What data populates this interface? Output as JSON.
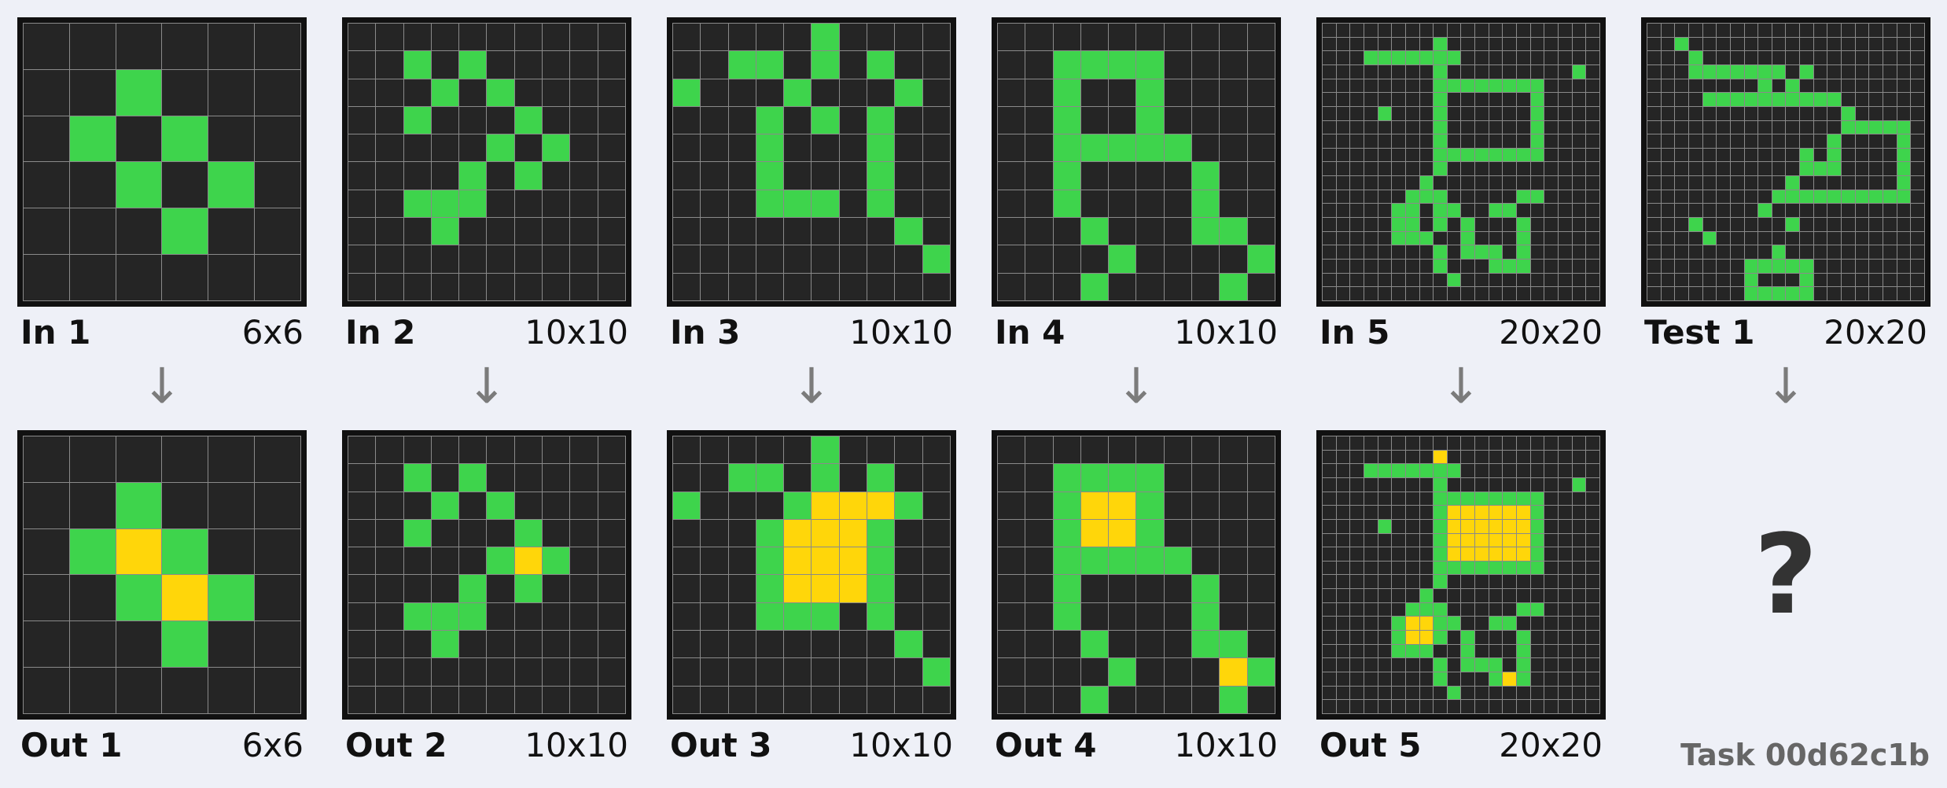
{
  "task_id": "Task 00d62c1b",
  "question_mark": "?",
  "arrow": "↓",
  "colors": {
    "0": "#252525",
    "3": "#3ed44c",
    "4": "#ffd60a"
  },
  "inputs": [
    {
      "label": "In 1",
      "size": "6x6",
      "grid": [
        "000000",
        "003000",
        "030300",
        "003030",
        "000300",
        "000000"
      ]
    },
    {
      "label": "In 2",
      "size": "10x10",
      "grid": [
        "0000000000",
        "0030300000",
        "0003030000",
        "0030003000",
        "0000030300",
        "0000303000",
        "0033300000",
        "0003000000",
        "0000000000",
        "0000000000"
      ]
    },
    {
      "label": "In 3",
      "size": "10x10",
      "grid": [
        "0000030000",
        "0033030300",
        "3000300030",
        "0003030300",
        "0003000300",
        "0003000300",
        "0003330300",
        "0000000030",
        "0000000003",
        "0000000000"
      ]
    },
    {
      "label": "In 4",
      "size": "10x10",
      "grid": [
        "0000000000",
        "0033330000",
        "0030030000",
        "0030030000",
        "0033333000",
        "0030000300",
        "0030000300",
        "0003000330",
        "0000300003",
        "0003000030"
      ]
    },
    {
      "label": "In 5",
      "size": "20x20",
      "grid": [
        "00000000000000000000",
        "00000000300000000000",
        "00033333330000000000",
        "00000000300000000030",
        "00000000333333330000",
        "00000000300000030000",
        "00003000300000030000",
        "00000000300000030000",
        "00000000300000030000",
        "00000000333333330000",
        "00000000300000000000",
        "00000003000000000000",
        "00000033300000330000",
        "00000330330033000000",
        "00000330303000300000",
        "00000333003000300000",
        "00000000303330300000",
        "00000000300033300000",
        "00000000030000000000",
        "00000000000000000000"
      ]
    },
    {
      "label": "Test 1",
      "size": "20x20",
      "grid": [
        "00000000000000000000",
        "00300000000000000000",
        "00030000000000000000",
        "00033333330300000000",
        "00000000303000000000",
        "00003333333333000000",
        "00000000000000300000",
        "00000000000000333330",
        "00000000000003000030",
        "00000000000303000030",
        "00000000000333000030",
        "00000000003000000030",
        "00000000033333333330",
        "00000000300000000000",
        "00030000003000000000",
        "00003000000000000000",
        "00000000030000000000",
        "00000003333300000000",
        "00000003000300000000",
        "00000003333300000000"
      ]
    }
  ],
  "outputs": [
    {
      "label": "Out 1",
      "size": "6x6",
      "grid": [
        "000000",
        "003000",
        "034300",
        "003430",
        "000300",
        "000000"
      ]
    },
    {
      "label": "Out 2",
      "size": "10x10",
      "grid": [
        "0000000000",
        "0030300000",
        "0003030000",
        "0030003000",
        "0000034300",
        "0000303000",
        "0033300000",
        "0003000000",
        "0000000000",
        "0000000000"
      ]
    },
    {
      "label": "Out 3",
      "size": "10x10",
      "grid": [
        "0000030000",
        "0033030300",
        "3000344430",
        "0003444300",
        "0003444300",
        "0003444300",
        "0003330300",
        "0000000030",
        "0000000003",
        "0000000000"
      ]
    },
    {
      "label": "Out 4",
      "size": "10x10",
      "grid": [
        "0000000000",
        "0033330000",
        "0034430000",
        "0034430000",
        "0033333000",
        "0030000300",
        "0030000300",
        "0003000330",
        "0000300043",
        "0003000030"
      ]
    },
    {
      "label": "Out 5",
      "size": "20x20",
      "grid": [
        "00000000000000000000",
        "00000000400000000000",
        "00033333330000000000",
        "00000000300000000030",
        "00000000333333330000",
        "00000000344444430000",
        "00003000344444430000",
        "00000000344444430000",
        "00000000344444430000",
        "00000000333333330000",
        "00000000300000000000",
        "00000003000000000000",
        "00000033300000330000",
        "00000344330033000000",
        "00000344303000300000",
        "00000333003000300000",
        "00000000303330300000",
        "00000000300034300000",
        "00000000030000000000",
        "00000000000000000000"
      ]
    }
  ]
}
